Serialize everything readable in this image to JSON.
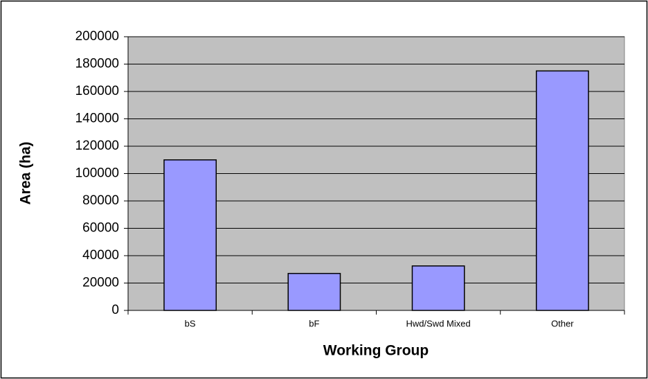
{
  "chart_data": {
    "type": "bar",
    "x_label": "Working Group",
    "y_label": "Area (ha)",
    "categories": [
      "bS",
      "bF",
      "Hwd/Swd Mixed",
      "Other"
    ],
    "values": [
      110000,
      27000,
      32500,
      175000
    ],
    "color": "#9999ff",
    "ylim": [
      0,
      200000
    ],
    "yticks": [
      0,
      20000,
      40000,
      60000,
      80000,
      100000,
      120000,
      140000,
      160000,
      180000,
      200000
    ],
    "grid": true
  }
}
